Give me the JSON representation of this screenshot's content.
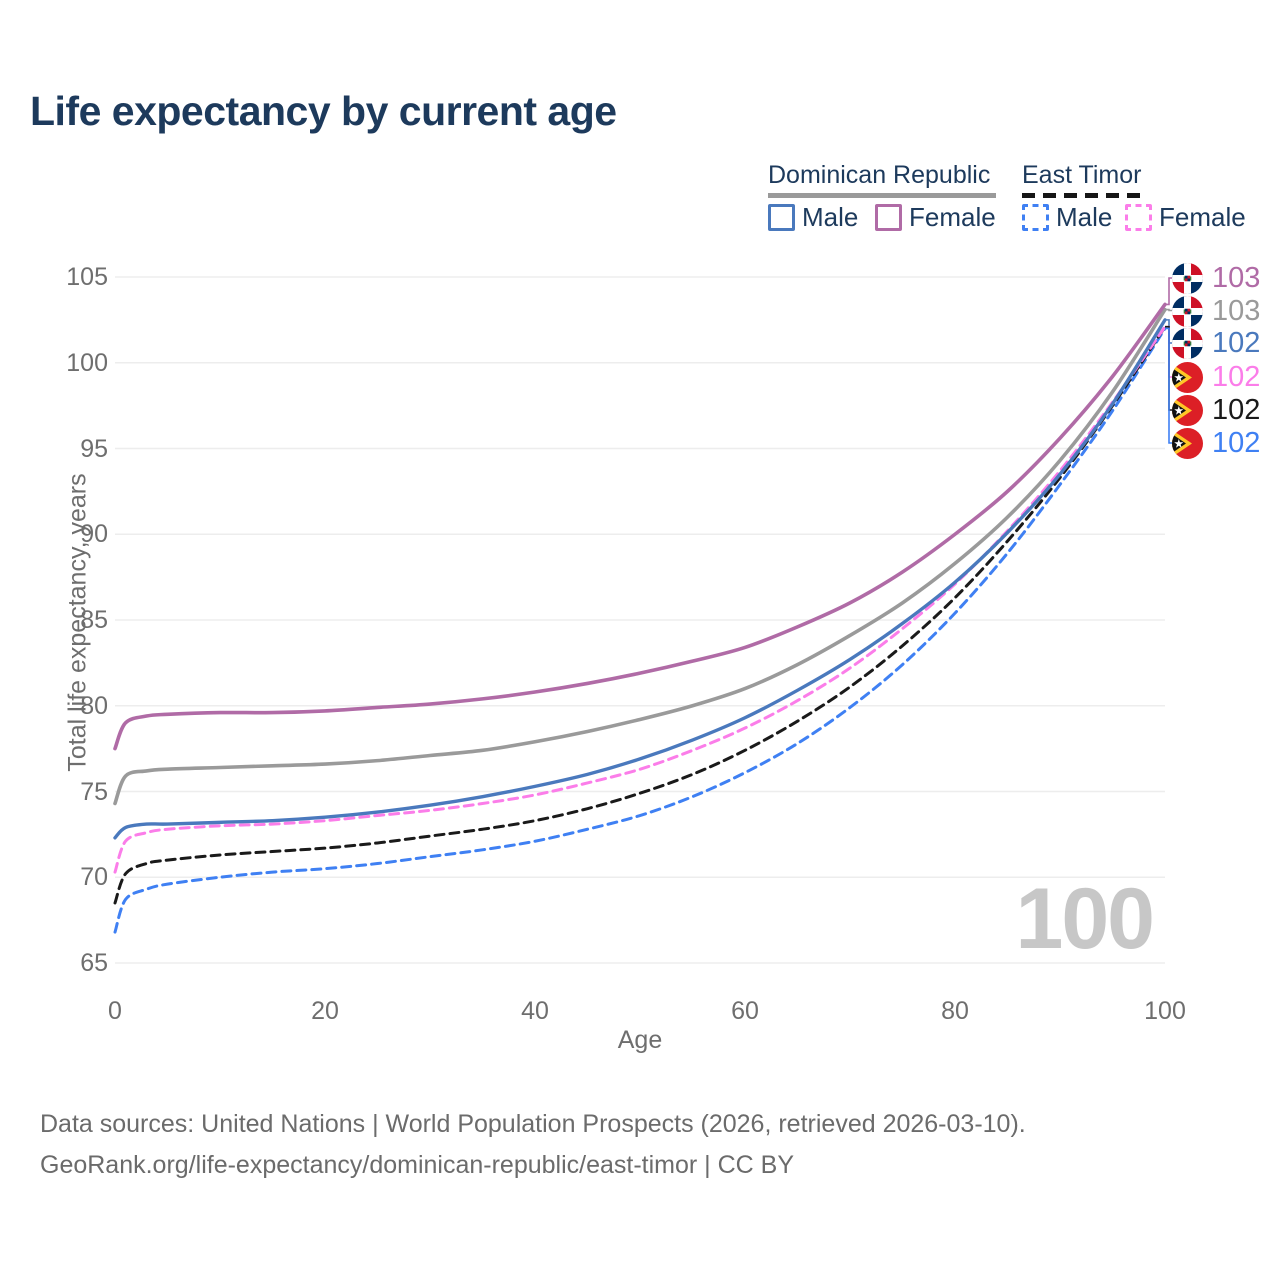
{
  "title": "Life expectancy by current age",
  "watermark": "100",
  "colors": {
    "dr_female": "#b06ba6",
    "dr_total": "#9a9a9a",
    "dr_male": "#4a79bd",
    "et_female": "#fb7de9",
    "et_total": "#1a1a1a",
    "et_male": "#3f80f3",
    "title_text": "#1d3a5c",
    "axis_text": "#6e6e6e",
    "grid": "#ededed",
    "watermark": "#c7c7c7"
  },
  "legend": {
    "dominican_republic": {
      "label": "Dominican Republic",
      "male_label": "Male",
      "female_label": "Female"
    },
    "east_timor": {
      "label": "East Timor",
      "male_label": "Male",
      "female_label": "Female"
    }
  },
  "y_axis": {
    "label": "Total life expectancy, years",
    "ticks": [
      105,
      100,
      95,
      90,
      85,
      80,
      75,
      70,
      65
    ],
    "min": 65,
    "max": 105
  },
  "x_axis": {
    "label": "Age",
    "ticks": [
      0,
      20,
      40,
      60,
      80,
      100
    ],
    "min": 0,
    "max": 100
  },
  "end_labels": [
    {
      "value": "103",
      "series": "dr_female",
      "country": "Dominican Republic"
    },
    {
      "value": "103",
      "series": "dr_total",
      "country": "Dominican Republic"
    },
    {
      "value": "102",
      "series": "dr_male",
      "country": "Dominican Republic"
    },
    {
      "value": "102",
      "series": "et_female",
      "country": "East Timor"
    },
    {
      "value": "102",
      "series": "et_total",
      "country": "East Timor"
    },
    {
      "value": "102",
      "series": "et_male",
      "country": "East Timor"
    }
  ],
  "footer": {
    "line1": "Data sources: United Nations | World Population Prospects (2026, retrieved 2026-03-10).",
    "line2": "GeoRank.org/life-expectancy/dominican-republic/east-timor | CC BY"
  },
  "chart_data": {
    "type": "line",
    "title": "Life expectancy by current age",
    "xlabel": "Age",
    "ylabel": "Total life expectancy, years",
    "xlim": [
      0,
      100
    ],
    "ylim": [
      65,
      105
    ],
    "grid": true,
    "legend_position": "top-right",
    "x": [
      0,
      1,
      3,
      5,
      10,
      15,
      20,
      25,
      30,
      35,
      40,
      45,
      50,
      55,
      60,
      65,
      70,
      75,
      80,
      85,
      90,
      95,
      100
    ],
    "series": [
      {
        "name": "Dominican Republic Male",
        "key": "dr_male",
        "style": "solid",
        "values": [
          72.3,
          72.9,
          73.1,
          73.1,
          73.2,
          73.3,
          73.5,
          73.8,
          74.2,
          74.7,
          75.3,
          76.0,
          76.9,
          78.0,
          79.3,
          80.9,
          82.7,
          84.8,
          87.2,
          90.1,
          93.5,
          97.6,
          102.5
        ],
        "end_label": 102
      },
      {
        "name": "Dominican Republic Female",
        "key": "dr_female",
        "style": "solid",
        "values": [
          77.5,
          79.0,
          79.4,
          79.5,
          79.6,
          79.6,
          79.7,
          79.9,
          80.1,
          80.4,
          80.8,
          81.3,
          81.9,
          82.6,
          83.4,
          84.6,
          86.0,
          87.8,
          90.0,
          92.5,
          95.6,
          99.2,
          103.4
        ],
        "end_label": 103
      },
      {
        "name": "Dominican Republic Both sexes",
        "key": "dr_total",
        "style": "solid",
        "values": [
          74.3,
          75.9,
          76.2,
          76.3,
          76.4,
          76.5,
          76.6,
          76.8,
          77.1,
          77.4,
          77.9,
          78.5,
          79.2,
          80.0,
          81.0,
          82.4,
          84.1,
          86.0,
          88.3,
          91.0,
          94.3,
          98.3,
          103.1
        ],
        "end_label": 103
      },
      {
        "name": "East Timor Male",
        "key": "et_male",
        "style": "dashed",
        "values": [
          66.8,
          68.7,
          69.3,
          69.6,
          70.0,
          70.3,
          70.5,
          70.8,
          71.2,
          71.6,
          72.1,
          72.8,
          73.6,
          74.7,
          76.1,
          77.8,
          79.9,
          82.4,
          85.4,
          88.9,
          92.9,
          97.2,
          102.0
        ],
        "end_label": 102
      },
      {
        "name": "East Timor Female",
        "key": "et_female",
        "style": "dashed",
        "values": [
          70.3,
          72.1,
          72.6,
          72.8,
          73.0,
          73.1,
          73.3,
          73.6,
          73.9,
          74.3,
          74.8,
          75.5,
          76.3,
          77.4,
          78.7,
          80.3,
          82.2,
          84.5,
          87.1,
          90.2,
          93.7,
          97.7,
          102.1
        ],
        "end_label": 102
      },
      {
        "name": "East Timor Both sexes",
        "key": "et_total",
        "style": "dashed",
        "values": [
          68.5,
          70.2,
          70.8,
          71.0,
          71.3,
          71.5,
          71.7,
          72.0,
          72.4,
          72.8,
          73.3,
          74.0,
          74.9,
          76.0,
          77.4,
          79.1,
          81.1,
          83.5,
          86.3,
          89.6,
          93.3,
          97.5,
          102.1
        ],
        "end_label": 102
      }
    ]
  }
}
